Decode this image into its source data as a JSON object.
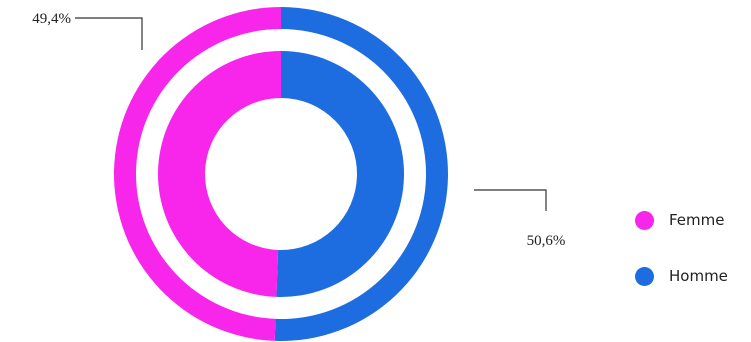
{
  "chart_data": {
    "type": "pie",
    "variant": "concentric-donut",
    "categories": [
      "Femme",
      "Homme"
    ],
    "values": [
      49.4,
      50.6
    ],
    "value_labels": [
      "49,4%",
      "50,6%"
    ],
    "colors": [
      "#f825ea",
      "#1d6de0"
    ],
    "title": "",
    "legend": {
      "position": "right",
      "items": [
        {
          "label": "Femme",
          "color": "#f825ea"
        },
        {
          "label": "Homme",
          "color": "#1d6de0"
        }
      ]
    }
  }
}
